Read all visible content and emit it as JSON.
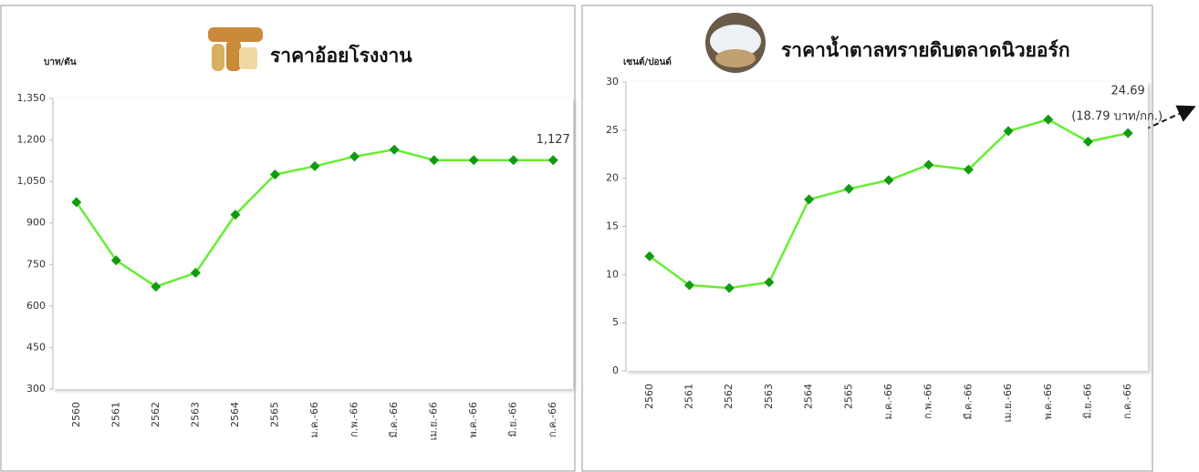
{
  "chart_data": [
    {
      "type": "line",
      "title": "ราคาอ้อยโรงงาน",
      "y_label": "บาท/ตัน",
      "categories": [
        "2560",
        "2561",
        "2562",
        "2563",
        "2564",
        "2565",
        "ม.ค.-66",
        "ก.พ.-66",
        "มี.ค.-66",
        "เม.ย.-66",
        "พ.ค.-66",
        "มิ.ย.-66",
        "ก.ค.-66"
      ],
      "series": [
        {
          "name": "ราคาอ้อยโรงงาน",
          "color": "#66ee33",
          "marker_color": "#129a12",
          "values": [
            975,
            765,
            670,
            720,
            930,
            1075,
            1105,
            1140,
            1165,
            1127,
            1127,
            1127,
            1127
          ],
          "value_labels": [
            null,
            null,
            null,
            null,
            null,
            null,
            null,
            null,
            null,
            null,
            null,
            null,
            "1,127"
          ]
        }
      ],
      "ylim": [
        300,
        1350
      ],
      "yticks": [
        300,
        450,
        600,
        750,
        900,
        {
          "value": 1050,
          "label": "1,050"
        },
        {
          "value": 1200,
          "label": "1,200"
        },
        {
          "value": 1350,
          "label": "1,350"
        }
      ]
    },
    {
      "type": "line",
      "title": "ราคาน้ำตาลทรายดิบตลาดนิวยอร์ก",
      "y_label": "เซนต์/ปอนด์",
      "categories": [
        "2560",
        "2561",
        "2562",
        "2563",
        "2564",
        "2565",
        "ม.ค.-66",
        "ก.พ.-66",
        "มี.ค.-66",
        "เม.ย.-66",
        "พ.ค.-66",
        "มิ.ย.-66",
        "ก.ค.-66"
      ],
      "series": [
        {
          "name": "ราคาน้ำตาลทรายดิบ",
          "color": "#66ee33",
          "marker_color": "#129a12",
          "values": [
            11.9,
            8.9,
            8.6,
            9.2,
            17.8,
            18.9,
            19.8,
            21.4,
            20.9,
            24.9,
            26.1,
            23.8,
            24.69
          ],
          "value_labels": [
            null,
            null,
            null,
            null,
            null,
            null,
            null,
            null,
            null,
            null,
            null,
            null,
            "24.69"
          ]
        }
      ],
      "annotation": "(18.79 บาท/กก.)",
      "ylim": [
        0,
        30
      ],
      "yticks": [
        0,
        5,
        10,
        15,
        20,
        25,
        30
      ]
    }
  ]
}
